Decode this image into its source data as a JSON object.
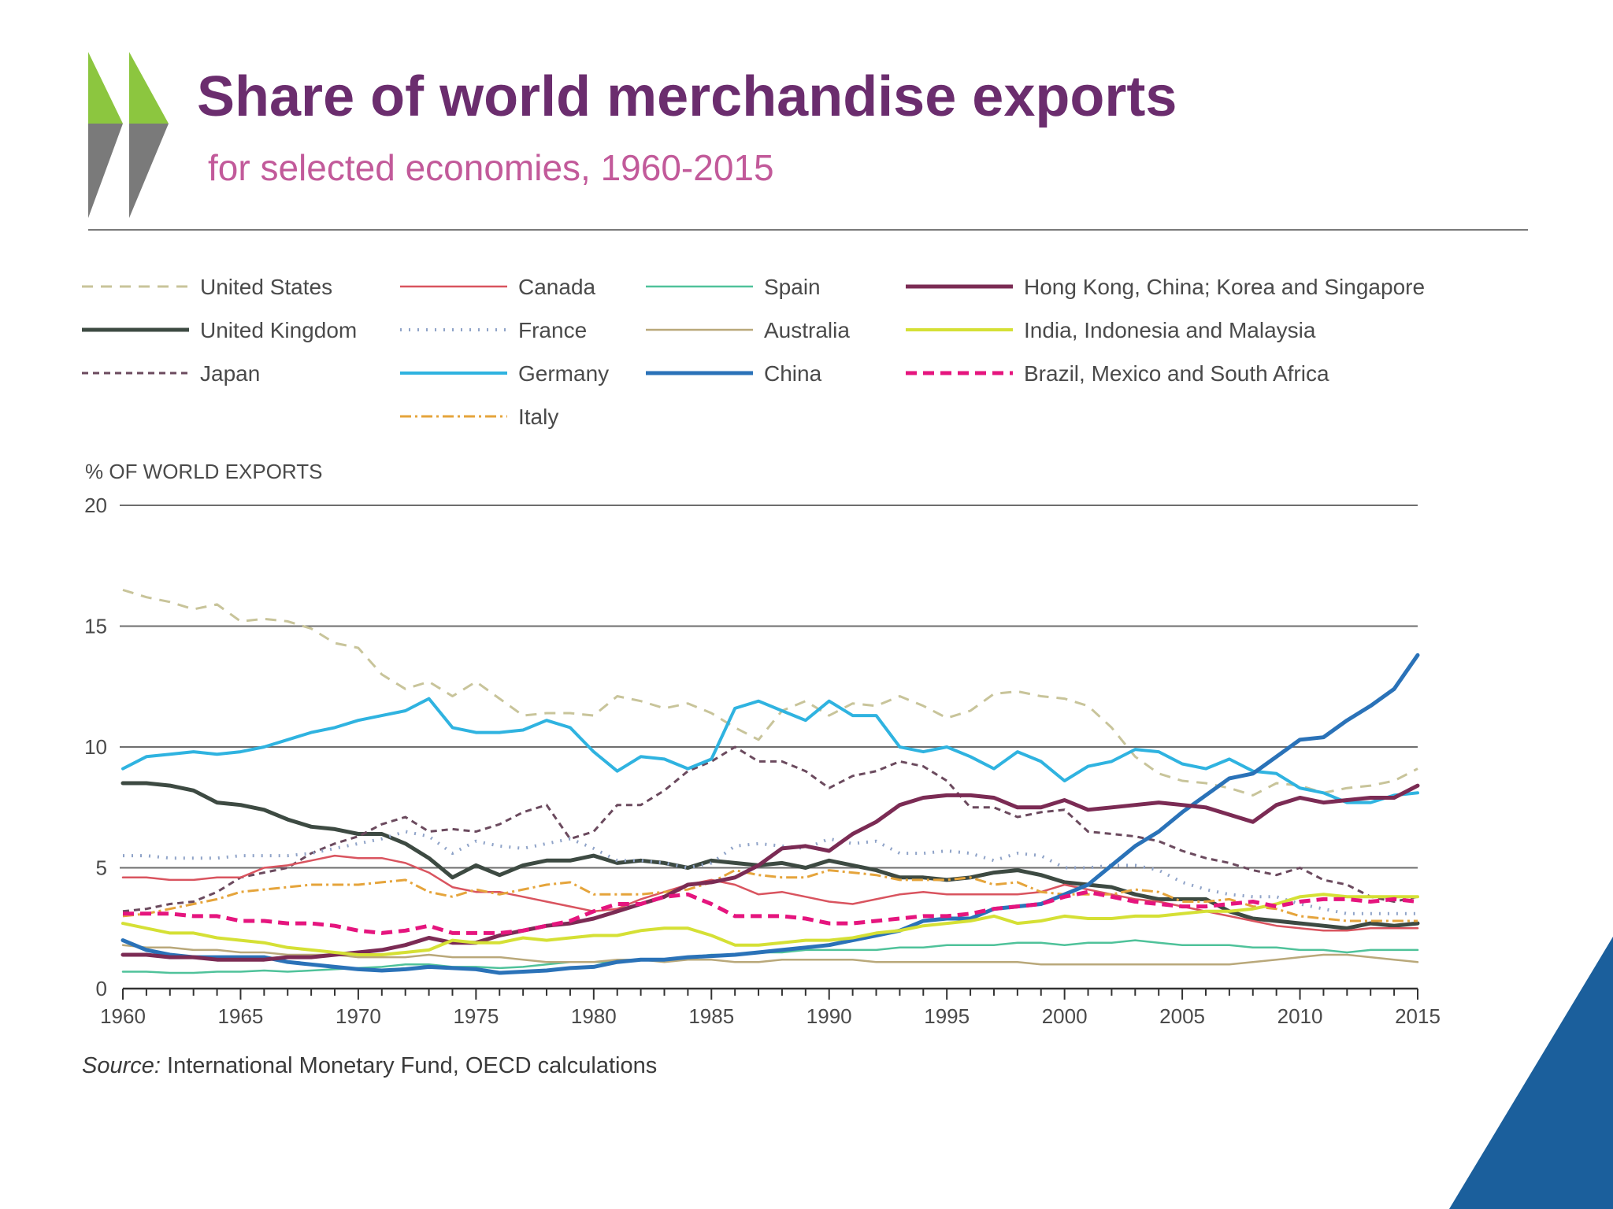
{
  "header": {
    "title": "Share of world merchandise exports",
    "subtitle": "for selected economies, 1960-2015"
  },
  "logo": {
    "icon": "double-chevron-icon",
    "colors": [
      "#8cc63f",
      "#7a7a7a"
    ]
  },
  "footer": {
    "source_label": "Source:",
    "source_text": " International Monetary Fund, OECD calculations"
  },
  "corner_color": "#1b5f9c",
  "chart_data": {
    "type": "line",
    "ylabel": "% OF WORLD EXPORTS",
    "ylim": [
      0,
      20
    ],
    "yticks": [
      0,
      5,
      10,
      15,
      20
    ],
    "xlim": [
      1960,
      2015
    ],
    "xticks": [
      1960,
      1965,
      1970,
      1975,
      1980,
      1985,
      1990,
      1995,
      2000,
      2005,
      2010,
      2015
    ],
    "xtick_labels": [
      "1960",
      "1965",
      "1970",
      "1975",
      "1980",
      "1985",
      "1990",
      "1995",
      "2000",
      "2005",
      "2010",
      "2015"
    ],
    "x": [
      1960,
      1961,
      1962,
      1963,
      1964,
      1965,
      1966,
      1967,
      1968,
      1969,
      1970,
      1971,
      1972,
      1973,
      1974,
      1975,
      1976,
      1977,
      1978,
      1979,
      1980,
      1981,
      1982,
      1983,
      1984,
      1985,
      1986,
      1987,
      1988,
      1989,
      1990,
      1991,
      1992,
      1993,
      1994,
      1995,
      1996,
      1997,
      1998,
      1999,
      2000,
      2001,
      2002,
      2003,
      2004,
      2005,
      2006,
      2007,
      2008,
      2009,
      2010,
      2011,
      2012,
      2013,
      2014,
      2015
    ],
    "legend_columns": 4,
    "series": [
      {
        "name": "United States",
        "color": "#c8c49a",
        "width": 3,
        "dash": "14,10",
        "col": 0,
        "row": 0,
        "values": [
          16.5,
          16.2,
          16.0,
          15.7,
          15.9,
          15.2,
          15.3,
          15.2,
          14.9,
          14.3,
          14.1,
          13.0,
          12.4,
          12.7,
          12.1,
          12.7,
          12.0,
          11.3,
          11.4,
          11.4,
          11.3,
          12.1,
          11.9,
          11.6,
          11.8,
          11.4,
          10.8,
          10.3,
          11.5,
          11.9,
          11.3,
          11.8,
          11.7,
          12.1,
          11.7,
          11.2,
          11.5,
          12.2,
          12.3,
          12.1,
          12.0,
          11.7,
          10.8,
          9.6,
          8.9,
          8.6,
          8.5,
          8.3,
          8.0,
          8.5,
          8.4,
          8.1,
          8.3,
          8.4,
          8.6,
          9.1
        ]
      },
      {
        "name": "United Kingdom",
        "color": "#3d4a42",
        "width": 5,
        "dash": "",
        "col": 0,
        "row": 1,
        "values": [
          8.5,
          8.5,
          8.4,
          8.2,
          7.7,
          7.6,
          7.4,
          7.0,
          6.7,
          6.6,
          6.4,
          6.4,
          6.0,
          5.4,
          4.6,
          5.1,
          4.7,
          5.1,
          5.3,
          5.3,
          5.5,
          5.2,
          5.3,
          5.2,
          5.0,
          5.3,
          5.2,
          5.1,
          5.2,
          5.0,
          5.3,
          5.1,
          4.9,
          4.6,
          4.6,
          4.5,
          4.6,
          4.8,
          4.9,
          4.7,
          4.4,
          4.3,
          4.2,
          3.9,
          3.7,
          3.7,
          3.7,
          3.2,
          2.9,
          2.8,
          2.7,
          2.6,
          2.5,
          2.7,
          2.6,
          2.7
        ]
      },
      {
        "name": "Japan",
        "color": "#6b4a5e",
        "width": 3,
        "dash": "8,6",
        "col": 0,
        "row": 2,
        "values": [
          3.2,
          3.3,
          3.5,
          3.6,
          4.0,
          4.6,
          4.8,
          5.0,
          5.6,
          6.0,
          6.3,
          6.8,
          7.1,
          6.5,
          6.6,
          6.5,
          6.8,
          7.3,
          7.6,
          6.2,
          6.5,
          7.6,
          7.6,
          8.2,
          9.0,
          9.4,
          10.0,
          9.4,
          9.4,
          9.0,
          8.3,
          8.8,
          9.0,
          9.4,
          9.2,
          8.6,
          7.5,
          7.5,
          7.1,
          7.3,
          7.4,
          6.5,
          6.4,
          6.3,
          6.1,
          5.7,
          5.4,
          5.2,
          4.9,
          4.7,
          5.0,
          4.5,
          4.3,
          3.8,
          3.6,
          3.8
        ]
      },
      {
        "name": "Canada",
        "color": "#d9545f",
        "width": 2.5,
        "dash": "",
        "col": 1,
        "row": 0,
        "values": [
          4.6,
          4.6,
          4.5,
          4.5,
          4.6,
          4.6,
          5.0,
          5.1,
          5.3,
          5.5,
          5.4,
          5.4,
          5.2,
          4.8,
          4.2,
          4.0,
          4.0,
          3.8,
          3.6,
          3.4,
          3.2,
          3.3,
          3.7,
          4.0,
          4.3,
          4.5,
          4.3,
          3.9,
          4.0,
          3.8,
          3.6,
          3.5,
          3.7,
          3.9,
          4.0,
          3.9,
          3.9,
          3.9,
          3.9,
          4.0,
          4.3,
          4.1,
          3.9,
          3.7,
          3.6,
          3.4,
          3.2,
          3.0,
          2.8,
          2.6,
          2.5,
          2.4,
          2.4,
          2.5,
          2.5,
          2.5
        ]
      },
      {
        "name": "France",
        "color": "#8fa3c8",
        "width": 4,
        "dash": "2,9",
        "col": 1,
        "row": 1,
        "values": [
          5.5,
          5.5,
          5.4,
          5.4,
          5.4,
          5.5,
          5.5,
          5.5,
          5.6,
          5.8,
          6.0,
          6.2,
          6.5,
          6.3,
          5.6,
          6.1,
          5.9,
          5.8,
          6.0,
          6.2,
          5.8,
          5.3,
          5.3,
          5.2,
          5.0,
          5.2,
          5.9,
          6.0,
          5.9,
          5.8,
          6.2,
          6.0,
          6.1,
          5.6,
          5.6,
          5.7,
          5.6,
          5.3,
          5.6,
          5.5,
          5.0,
          5.0,
          5.1,
          5.1,
          4.9,
          4.4,
          4.1,
          3.9,
          3.8,
          3.8,
          3.5,
          3.3,
          3.1,
          3.1,
          3.1,
          3.1
        ]
      },
      {
        "name": "Germany",
        "color": "#2fb3e0",
        "width": 4,
        "dash": "",
        "col": 1,
        "row": 2,
        "values": [
          9.1,
          9.6,
          9.7,
          9.8,
          9.7,
          9.8,
          10.0,
          10.3,
          10.6,
          10.8,
          11.1,
          11.3,
          11.5,
          12.0,
          10.8,
          10.6,
          10.6,
          10.7,
          11.1,
          10.8,
          9.8,
          9.0,
          9.6,
          9.5,
          9.1,
          9.5,
          11.6,
          11.9,
          11.5,
          11.1,
          11.9,
          11.3,
          11.3,
          10.0,
          9.8,
          10.0,
          9.6,
          9.1,
          9.8,
          9.4,
          8.6,
          9.2,
          9.4,
          9.9,
          9.8,
          9.3,
          9.1,
          9.5,
          9.0,
          8.9,
          8.3,
          8.1,
          7.7,
          7.7,
          8.0,
          8.1
        ]
      },
      {
        "name": "Italy",
        "color": "#e5a43b",
        "width": 3,
        "dash": "14,5,3,5",
        "col": 1,
        "row": 3,
        "values": [
          3.0,
          3.1,
          3.3,
          3.5,
          3.7,
          4.0,
          4.1,
          4.2,
          4.3,
          4.3,
          4.3,
          4.4,
          4.5,
          4.0,
          3.8,
          4.1,
          3.9,
          4.1,
          4.3,
          4.4,
          3.9,
          3.9,
          3.9,
          4.0,
          4.1,
          4.4,
          4.9,
          4.7,
          4.6,
          4.6,
          4.9,
          4.8,
          4.7,
          4.5,
          4.5,
          4.5,
          4.6,
          4.3,
          4.4,
          4.0,
          3.9,
          3.9,
          3.9,
          4.1,
          4.0,
          3.6,
          3.6,
          3.7,
          3.4,
          3.3,
          3.0,
          2.9,
          2.8,
          2.8,
          2.8,
          2.8
        ]
      },
      {
        "name": "Spain",
        "color": "#4fc29a",
        "width": 2.5,
        "dash": "",
        "col": 2,
        "row": 0,
        "values": [
          0.7,
          0.7,
          0.65,
          0.65,
          0.7,
          0.7,
          0.75,
          0.7,
          0.75,
          0.8,
          0.85,
          0.9,
          1.0,
          1.0,
          0.9,
          0.9,
          0.85,
          0.9,
          1.0,
          1.1,
          1.1,
          1.1,
          1.2,
          1.2,
          1.3,
          1.4,
          1.4,
          1.5,
          1.5,
          1.6,
          1.6,
          1.6,
          1.6,
          1.7,
          1.7,
          1.8,
          1.8,
          1.8,
          1.9,
          1.9,
          1.8,
          1.9,
          1.9,
          2.0,
          1.9,
          1.8,
          1.8,
          1.8,
          1.7,
          1.7,
          1.6,
          1.6,
          1.5,
          1.6,
          1.6,
          1.6
        ]
      },
      {
        "name": "Australia",
        "color": "#b9a87a",
        "width": 2.5,
        "dash": "",
        "col": 2,
        "row": 1,
        "values": [
          1.8,
          1.7,
          1.7,
          1.6,
          1.6,
          1.5,
          1.5,
          1.4,
          1.4,
          1.4,
          1.3,
          1.3,
          1.3,
          1.4,
          1.3,
          1.3,
          1.3,
          1.2,
          1.1,
          1.1,
          1.1,
          1.2,
          1.2,
          1.1,
          1.2,
          1.2,
          1.1,
          1.1,
          1.2,
          1.2,
          1.2,
          1.2,
          1.1,
          1.1,
          1.1,
          1.1,
          1.1,
          1.1,
          1.1,
          1.0,
          1.0,
          1.0,
          1.0,
          1.0,
          1.0,
          1.0,
          1.0,
          1.0,
          1.1,
          1.2,
          1.3,
          1.4,
          1.4,
          1.3,
          1.2,
          1.1
        ]
      },
      {
        "name": "China",
        "color": "#2a72b8",
        "width": 5,
        "dash": "",
        "col": 2,
        "row": 2,
        "values": [
          2.0,
          1.6,
          1.4,
          1.3,
          1.3,
          1.3,
          1.3,
          1.1,
          1.0,
          0.9,
          0.8,
          0.75,
          0.8,
          0.9,
          0.85,
          0.8,
          0.65,
          0.7,
          0.75,
          0.85,
          0.9,
          1.1,
          1.2,
          1.2,
          1.3,
          1.35,
          1.4,
          1.5,
          1.6,
          1.7,
          1.8,
          2.0,
          2.2,
          2.4,
          2.8,
          2.9,
          2.9,
          3.3,
          3.4,
          3.5,
          3.9,
          4.3,
          5.1,
          5.9,
          6.5,
          7.3,
          8.0,
          8.7,
          8.9,
          9.6,
          10.3,
          10.4,
          11.1,
          11.7,
          12.4,
          13.8
        ]
      },
      {
        "name": "Hong Kong, China; Korea and Singapore",
        "color": "#7b2b54",
        "width": 5,
        "dash": "",
        "col": 3,
        "row": 0,
        "values": [
          1.4,
          1.4,
          1.3,
          1.3,
          1.2,
          1.2,
          1.2,
          1.3,
          1.3,
          1.4,
          1.5,
          1.6,
          1.8,
          2.1,
          1.9,
          1.9,
          2.2,
          2.4,
          2.6,
          2.7,
          2.9,
          3.2,
          3.5,
          3.8,
          4.3,
          4.4,
          4.6,
          5.1,
          5.8,
          5.9,
          5.7,
          6.4,
          6.9,
          7.6,
          7.9,
          8.0,
          8.0,
          7.9,
          7.5,
          7.5,
          7.8,
          7.4,
          7.5,
          7.6,
          7.7,
          7.6,
          7.5,
          7.2,
          6.9,
          7.6,
          7.9,
          7.7,
          7.8,
          7.9,
          7.9,
          8.4
        ]
      },
      {
        "name": "India, Indonesia and Malaysia",
        "color": "#d5e035",
        "width": 4,
        "dash": "",
        "col": 3,
        "row": 1,
        "values": [
          2.7,
          2.5,
          2.3,
          2.3,
          2.1,
          2.0,
          1.9,
          1.7,
          1.6,
          1.5,
          1.4,
          1.4,
          1.5,
          1.6,
          2.0,
          1.9,
          1.9,
          2.1,
          2.0,
          2.1,
          2.2,
          2.2,
          2.4,
          2.5,
          2.5,
          2.2,
          1.8,
          1.8,
          1.9,
          2.0,
          2.0,
          2.1,
          2.3,
          2.4,
          2.6,
          2.7,
          2.8,
          3.0,
          2.7,
          2.8,
          3.0,
          2.9,
          2.9,
          3.0,
          3.0,
          3.1,
          3.2,
          3.2,
          3.3,
          3.5,
          3.8,
          3.9,
          3.8,
          3.8,
          3.8,
          3.8
        ]
      },
      {
        "name": "Brazil, Mexico and South Africa",
        "color": "#e5157e",
        "width": 5,
        "dash": "14,8",
        "col": 3,
        "row": 2,
        "values": [
          3.1,
          3.1,
          3.1,
          3.0,
          3.0,
          2.8,
          2.8,
          2.7,
          2.7,
          2.6,
          2.4,
          2.3,
          2.4,
          2.6,
          2.3,
          2.3,
          2.3,
          2.4,
          2.6,
          2.8,
          3.2,
          3.5,
          3.5,
          3.8,
          3.9,
          3.5,
          3.0,
          3.0,
          3.0,
          2.9,
          2.7,
          2.7,
          2.8,
          2.9,
          3.0,
          3.0,
          3.1,
          3.3,
          3.4,
          3.5,
          3.8,
          4.0,
          3.8,
          3.6,
          3.5,
          3.4,
          3.4,
          3.5,
          3.6,
          3.4,
          3.6,
          3.7,
          3.7,
          3.6,
          3.7,
          3.6
        ]
      }
    ]
  }
}
